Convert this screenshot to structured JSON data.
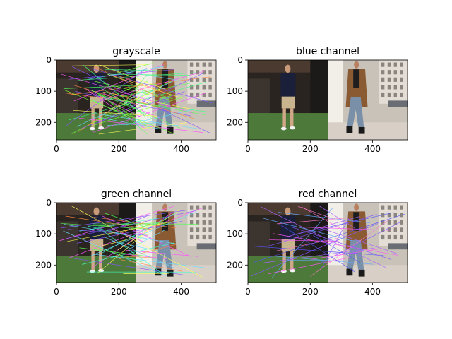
{
  "figure": {
    "background": "#ffffff"
  },
  "chart_data": [
    {
      "type": "image",
      "title": "grayscale",
      "xlim": [
        0,
        512
      ],
      "ylim": [
        256,
        0
      ],
      "xticks": [
        0,
        200,
        400
      ],
      "yticks": [
        0,
        100,
        200
      ],
      "has_match_lines": true,
      "line_colors": [
        "#7fff3a",
        "#44ff88",
        "#ff55ff",
        "#66ddff",
        "#ffff55",
        "#8855ff",
        "#ff8844",
        "#55ff55"
      ]
    },
    {
      "type": "image",
      "title": "blue channel",
      "xlim": [
        0,
        512
      ],
      "ylim": [
        256,
        0
      ],
      "xticks": [
        0,
        200,
        400
      ],
      "yticks": [
        0,
        100,
        200
      ],
      "has_match_lines": false,
      "line_colors": []
    },
    {
      "type": "image",
      "title": "green channel",
      "xlim": [
        0,
        512
      ],
      "ylim": [
        256,
        0
      ],
      "xticks": [
        0,
        200,
        400
      ],
      "yticks": [
        0,
        100,
        200
      ],
      "has_match_lines": true,
      "line_colors": [
        "#ff55ff",
        "#55ff55",
        "#66ddff",
        "#ffff55",
        "#ff8844",
        "#8855ff",
        "#44ffcc"
      ]
    },
    {
      "type": "image",
      "title": "red channel",
      "xlim": [
        0,
        512
      ],
      "ylim": [
        256,
        0
      ],
      "xticks": [
        0,
        200,
        400
      ],
      "yticks": [
        0,
        100,
        200
      ],
      "has_match_lines": true,
      "line_colors": [
        "#8855ff",
        "#ff55ff",
        "#5555ff",
        "#aa66ff",
        "#ff77cc",
        "#66aaff"
      ]
    }
  ]
}
